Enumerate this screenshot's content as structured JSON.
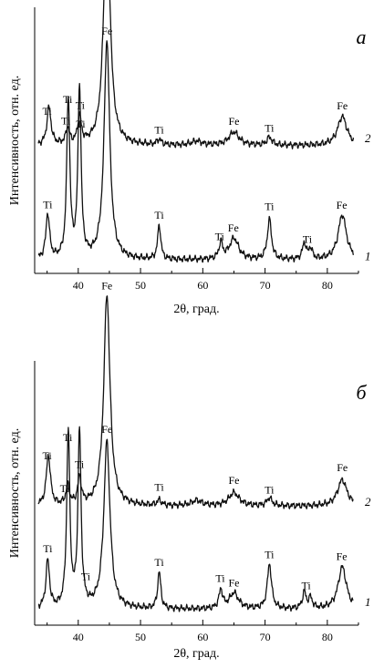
{
  "chart_data": [
    {
      "type": "line",
      "panel_label": "а",
      "xlabel": "2θ, град.",
      "ylabel": "Интенсивность, отн. ед.",
      "xlim": [
        33,
        85
      ],
      "x_ticks": [
        40,
        50,
        60,
        70,
        80
      ],
      "series": [
        {
          "name": "1",
          "baseline": 0.05,
          "peaks": [
            [
              35.1,
              0.17,
              0.35
            ],
            [
              38.4,
              0.6,
              0.3
            ],
            [
              40.2,
              0.64,
              0.3
            ],
            [
              44.6,
              0.82,
              0.55
            ],
            [
              53.0,
              0.13,
              0.3
            ],
            [
              62.9,
              0.06,
              0.35
            ],
            [
              65.0,
              0.08,
              0.9
            ],
            [
              70.7,
              0.15,
              0.4
            ],
            [
              76.3,
              0.06,
              0.35
            ],
            [
              77.3,
              0.04,
              0.35
            ],
            [
              82.4,
              0.17,
              0.8
            ]
          ],
          "labels": [
            {
              "text": "Ti",
              "x": 35.1
            },
            {
              "text": "Ti",
              "x": 38.3
            },
            {
              "text": "Ti",
              "x": 40.4
            },
            {
              "text": "Fe",
              "x": 44.6
            },
            {
              "text": "Ti",
              "x": 53.0
            },
            {
              "text": "Ti",
              "x": 62.7
            },
            {
              "text": "Fe",
              "x": 64.9
            },
            {
              "text": "Ti",
              "x": 70.7
            },
            {
              "text": "Ti",
              "x": 76.8
            },
            {
              "text": "Fe",
              "x": 82.3
            }
          ]
        },
        {
          "name": "2",
          "baseline": 0.48,
          "peaks": [
            [
              35.3,
              0.14,
              0.4
            ],
            [
              38.3,
              0.06,
              0.35
            ],
            [
              40.2,
              0.1,
              0.35
            ],
            [
              44.6,
              0.92,
              0.6
            ],
            [
              53.0,
              0.02,
              0.4
            ],
            [
              59.0,
              0.015,
              1.0
            ],
            [
              65.0,
              0.05,
              1.0
            ],
            [
              70.7,
              0.03,
              0.5
            ],
            [
              82.4,
              0.11,
              0.9
            ]
          ],
          "labels": [
            {
              "text": "Ti",
              "x": 35.0
            },
            {
              "text": "Ti",
              "x": 38.0
            },
            {
              "text": "Ti",
              "x": 40.3
            },
            {
              "text": "Fe",
              "x": 44.6
            },
            {
              "text": "Ti",
              "x": 53.0
            },
            {
              "text": "Fe",
              "x": 65.0
            },
            {
              "text": "Ti",
              "x": 70.7
            },
            {
              "text": "Fe",
              "x": 82.4
            }
          ]
        }
      ]
    },
    {
      "type": "line",
      "panel_label": "б",
      "xlabel": "2θ, град.",
      "ylabel": "Интенсивность, отн. ед.",
      "xlim": [
        33,
        85
      ],
      "x_ticks": [
        40,
        50,
        60,
        70,
        80
      ],
      "series": [
        {
          "name": "1",
          "baseline": 0.06,
          "peaks": [
            [
              35.1,
              0.18,
              0.35
            ],
            [
              38.4,
              0.66,
              0.3
            ],
            [
              40.2,
              0.66,
              0.3
            ],
            [
              44.6,
              0.63,
              0.6
            ],
            [
              53.0,
              0.14,
              0.3
            ],
            [
              62.9,
              0.07,
              0.35
            ],
            [
              65.0,
              0.06,
              0.9
            ],
            [
              70.7,
              0.17,
              0.4
            ],
            [
              76.3,
              0.06,
              0.35
            ],
            [
              77.3,
              0.04,
              0.35
            ],
            [
              82.4,
              0.16,
              0.8
            ]
          ],
          "labels": [
            {
              "text": "Ti",
              "x": 35.1
            },
            {
              "text": "Ti",
              "x": 38.3
            },
            {
              "text": "Ti",
              "x": 41.2
            },
            {
              "text": "Fe",
              "x": 44.6
            },
            {
              "text": "Ti",
              "x": 53.0
            },
            {
              "text": "Ti",
              "x": 62.8
            },
            {
              "text": "Fe",
              "x": 65.0
            },
            {
              "text": "Ti",
              "x": 70.7
            },
            {
              "text": "Ti",
              "x": 76.6
            },
            {
              "text": "Fe",
              "x": 82.3
            }
          ]
        },
        {
          "name": "2",
          "baseline": 0.45,
          "peaks": [
            [
              35.2,
              0.19,
              0.4
            ],
            [
              38.3,
              0.07,
              0.35
            ],
            [
              40.2,
              0.1,
              0.35
            ],
            [
              44.6,
              0.8,
              0.6
            ],
            [
              53.0,
              0.02,
              0.4
            ],
            [
              59.0,
              0.02,
              1.0
            ],
            [
              65.0,
              0.05,
              1.0
            ],
            [
              70.7,
              0.03,
              0.5
            ],
            [
              82.4,
              0.1,
              0.9
            ]
          ],
          "labels": [
            {
              "text": "Ti",
              "x": 35.0
            },
            {
              "text": "Ti",
              "x": 37.8
            },
            {
              "text": "Ti",
              "x": 40.2
            },
            {
              "text": "Fe",
              "x": 44.6
            },
            {
              "text": "Ti",
              "x": 53.0
            },
            {
              "text": "Fe",
              "x": 65.0
            },
            {
              "text": "Ti",
              "x": 70.7
            },
            {
              "text": "Fe",
              "x": 82.4
            }
          ]
        }
      ]
    }
  ]
}
